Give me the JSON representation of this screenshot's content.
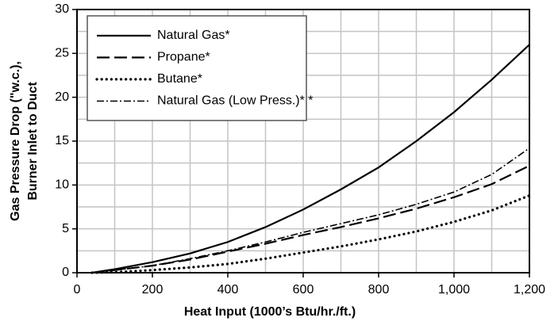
{
  "chart_data": {
    "type": "line",
    "ylabel": [
      "Gas Pressure Drop (\"w.c.),",
      "Burner Inlet to Duct"
    ],
    "xlabel": "Heat Input (1000’s Btu/hr./ft.)",
    "x": [
      40,
      100,
      200,
      300,
      400,
      500,
      600,
      700,
      800,
      900,
      1000,
      1100,
      1200
    ],
    "series": [
      {
        "name": "Natural Gas*",
        "color": "#000000",
        "style": "solid",
        "values": [
          0,
          0.4,
          1.2,
          2.2,
          3.5,
          5.2,
          7.2,
          9.5,
          12,
          15,
          18.3,
          22,
          26
        ]
      },
      {
        "name": "Propane*",
        "color": "#000000",
        "style": "dashed",
        "values": [
          0,
          0.3,
          0.8,
          1.5,
          2.4,
          3.3,
          4.3,
          5.2,
          6.2,
          7.3,
          8.6,
          10.1,
          12.2
        ]
      },
      {
        "name": "Butane*",
        "color": "#000000",
        "style": "dotted",
        "values": [
          0,
          0.05,
          0.3,
          0.6,
          1.0,
          1.6,
          2.3,
          3.0,
          3.8,
          4.7,
          5.8,
          7.1,
          8.8
        ]
      },
      {
        "name": "Natural Gas (Low Press.)* *",
        "color": "#000000",
        "style": "dashdot",
        "values": [
          0,
          0.3,
          0.8,
          1.6,
          2.5,
          3.5,
          4.6,
          5.6,
          6.6,
          7.8,
          9.2,
          11.2,
          14.2
        ]
      }
    ],
    "xlim": [
      0,
      1200
    ],
    "ylim": [
      0,
      30
    ],
    "xticks": [
      0,
      200,
      400,
      600,
      800,
      {
        "value": 1000,
        "label": "1,000"
      },
      {
        "value": 1200,
        "label": "1,200"
      }
    ],
    "yticks": [
      0,
      5,
      10,
      15,
      20,
      25,
      30
    ],
    "x_minor_grid": [
      100,
      300,
      500,
      700,
      900,
      1100
    ],
    "y_minor_grid": [
      2.5,
      7.5,
      12.5,
      17.5,
      22.5,
      27.5
    ],
    "grid": true,
    "legend": "upper left"
  }
}
